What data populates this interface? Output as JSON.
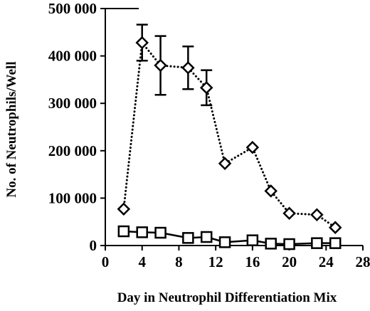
{
  "chart_data": {
    "type": "line",
    "title": "",
    "xlabel": "Day in Neutrophil Differentiation Mix",
    "ylabel": "No. of Neutrophils/Well",
    "xlim": [
      0,
      28
    ],
    "ylim": [
      0,
      500000
    ],
    "x_ticks": [
      0,
      4,
      8,
      12,
      16,
      20,
      24,
      28
    ],
    "x_tick_labels": [
      "0",
      "4",
      "8",
      "12",
      "16",
      "20",
      "24",
      "28"
    ],
    "y_ticks": [
      0,
      100000,
      200000,
      300000,
      400000,
      500000
    ],
    "y_tick_labels": [
      "0",
      "100 000",
      "200 000",
      "300 000",
      "400 000",
      "500 000"
    ],
    "grid": false,
    "legend": "none",
    "series": [
      {
        "marker": "diamond",
        "line_style": "dotted",
        "color": "#000000",
        "x": [
          2,
          4,
          6,
          9,
          11,
          13,
          16,
          18,
          20,
          23,
          25
        ],
        "y": [
          77000,
          428000,
          380000,
          375000,
          333000,
          173000,
          207000,
          115000,
          68000,
          65000,
          38000
        ],
        "error": [
          null,
          38000,
          62000,
          45000,
          37000,
          null,
          null,
          null,
          null,
          null,
          null
        ]
      },
      {
        "marker": "square",
        "line_style": "solid",
        "color": "#000000",
        "x": [
          2,
          4,
          6,
          9,
          11,
          13,
          16,
          18,
          20,
          23,
          25
        ],
        "y": [
          30000,
          28000,
          27000,
          16000,
          18000,
          7000,
          11000,
          4000,
          3000,
          5000,
          5000
        ],
        "error": [
          null,
          null,
          null,
          null,
          null,
          null,
          null,
          null,
          null,
          null,
          null
        ]
      }
    ]
  }
}
